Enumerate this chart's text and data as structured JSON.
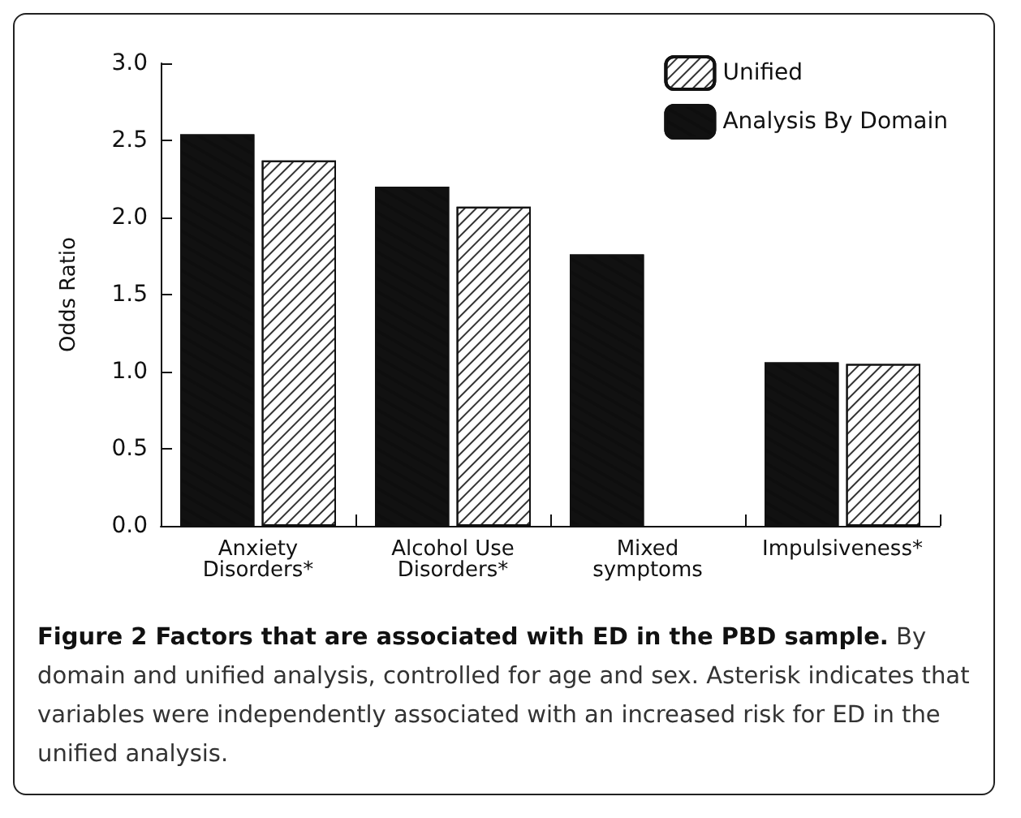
{
  "chart_data": {
    "type": "bar",
    "title": "Figure 2 Factors that are associated with ED in the PBD sample.",
    "annotations": [
      "By domain and unified analysis, controlled for age and sex. Asterisk indicates that variables were independently associated with an increased risk for ED in the unified analysis."
    ],
    "ylabel": "Odds Ratio",
    "categories": [
      "Anxiety\nDisorders*",
      "Alcohol Use\nDisorders*",
      "Mixed\nsymptoms",
      "Impulsiveness*"
    ],
    "series": [
      {
        "name": "Analysis By Domain",
        "color": "#111111",
        "values": [
          2.54,
          2.2,
          1.76,
          1.06
        ]
      },
      {
        "name": "Unified",
        "color": "#ffffff",
        "values": [
          2.37,
          2.07,
          null,
          1.05
        ]
      }
    ],
    "ylim": [
      0,
      3
    ],
    "yticks": [
      {
        "value": 0,
        "label": "0.0"
      },
      {
        "value": 0.5,
        "label": "0.5"
      },
      {
        "value": 1,
        "label": "1.0"
      },
      {
        "value": 1.5,
        "label": "1.5"
      },
      {
        "value": 2,
        "label": "2.0"
      },
      {
        "value": 2.5,
        "label": "2.5"
      },
      {
        "value": 3,
        "label": "3.0"
      }
    ],
    "grid": false,
    "legend": "top right"
  }
}
